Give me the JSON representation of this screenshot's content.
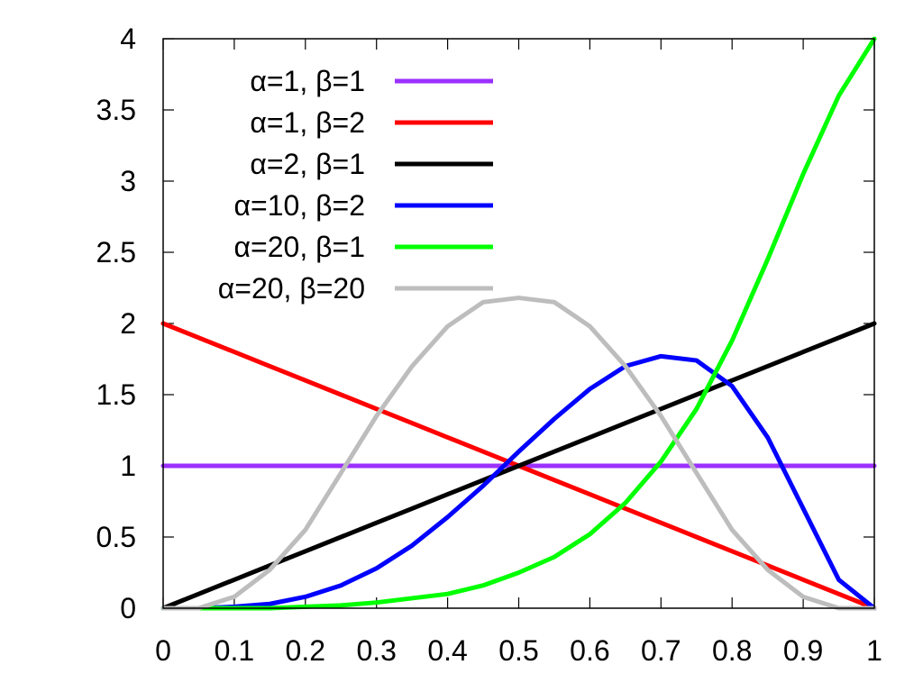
{
  "chart_data": {
    "type": "line",
    "title": "",
    "xlabel": "",
    "ylabel": "",
    "xlim": [
      0,
      1
    ],
    "ylim": [
      0,
      4
    ],
    "x_ticks": [
      "0",
      "0.1",
      "0.2",
      "0.3",
      "0.4",
      "0.5",
      "0.6",
      "0.7",
      "0.8",
      "0.9",
      "1"
    ],
    "y_ticks": [
      "0",
      "0.5",
      "1",
      "1.5",
      "2",
      "2.5",
      "3",
      "3.5",
      "4"
    ],
    "grid": false,
    "legend_position": "top-left",
    "x": [
      0,
      0.05,
      0.1,
      0.15,
      0.2,
      0.25,
      0.3,
      0.35,
      0.4,
      0.45,
      0.5,
      0.55,
      0.6,
      0.65,
      0.7,
      0.75,
      0.8,
      0.85,
      0.9,
      0.95,
      1
    ],
    "series": [
      {
        "name": "α=1, β=1",
        "color": "#9b30ff",
        "values": [
          1,
          1,
          1,
          1,
          1,
          1,
          1,
          1,
          1,
          1,
          1,
          1,
          1,
          1,
          1,
          1,
          1,
          1,
          1,
          1,
          1
        ]
      },
      {
        "name": "α=1, β=2",
        "color": "#ff0000",
        "values": [
          2,
          1.9,
          1.8,
          1.7,
          1.6,
          1.5,
          1.4,
          1.3,
          1.2,
          1.1,
          1,
          0.9,
          0.8,
          0.7,
          0.6,
          0.5,
          0.4,
          0.3,
          0.2,
          0.1,
          0
        ]
      },
      {
        "name": "α=2, β=1",
        "color": "#000000",
        "values": [
          0,
          0.1,
          0.2,
          0.3,
          0.4,
          0.5,
          0.6,
          0.7,
          0.8,
          0.9,
          1,
          1.1,
          1.2,
          1.3,
          1.4,
          1.5,
          1.6,
          1.7,
          1.8,
          1.9,
          2
        ]
      },
      {
        "name": "α=10, β=2",
        "color": "#0000ff",
        "values": [
          0,
          0,
          0.01,
          0.03,
          0.08,
          0.16,
          0.28,
          0.44,
          0.64,
          0.86,
          1.1,
          1.33,
          1.54,
          1.7,
          1.77,
          1.74,
          1.56,
          1.2,
          0.7,
          0.2,
          0
        ]
      },
      {
        "name": "α=20, β=1",
        "color": "#00ff00",
        "values": [
          0,
          0,
          0,
          0,
          0.01,
          0.02,
          0.04,
          0.07,
          0.1,
          0.16,
          0.25,
          0.36,
          0.52,
          0.74,
          1.03,
          1.4,
          1.88,
          2.45,
          3.05,
          3.6,
          4
        ]
      },
      {
        "name": "α=20, β=20",
        "color": "#bdbdbd",
        "values": [
          0,
          0,
          0.08,
          0.27,
          0.55,
          0.95,
          1.35,
          1.7,
          1.98,
          2.15,
          2.18,
          2.15,
          1.98,
          1.7,
          1.35,
          0.95,
          0.55,
          0.27,
          0.08,
          0,
          0
        ]
      }
    ]
  }
}
